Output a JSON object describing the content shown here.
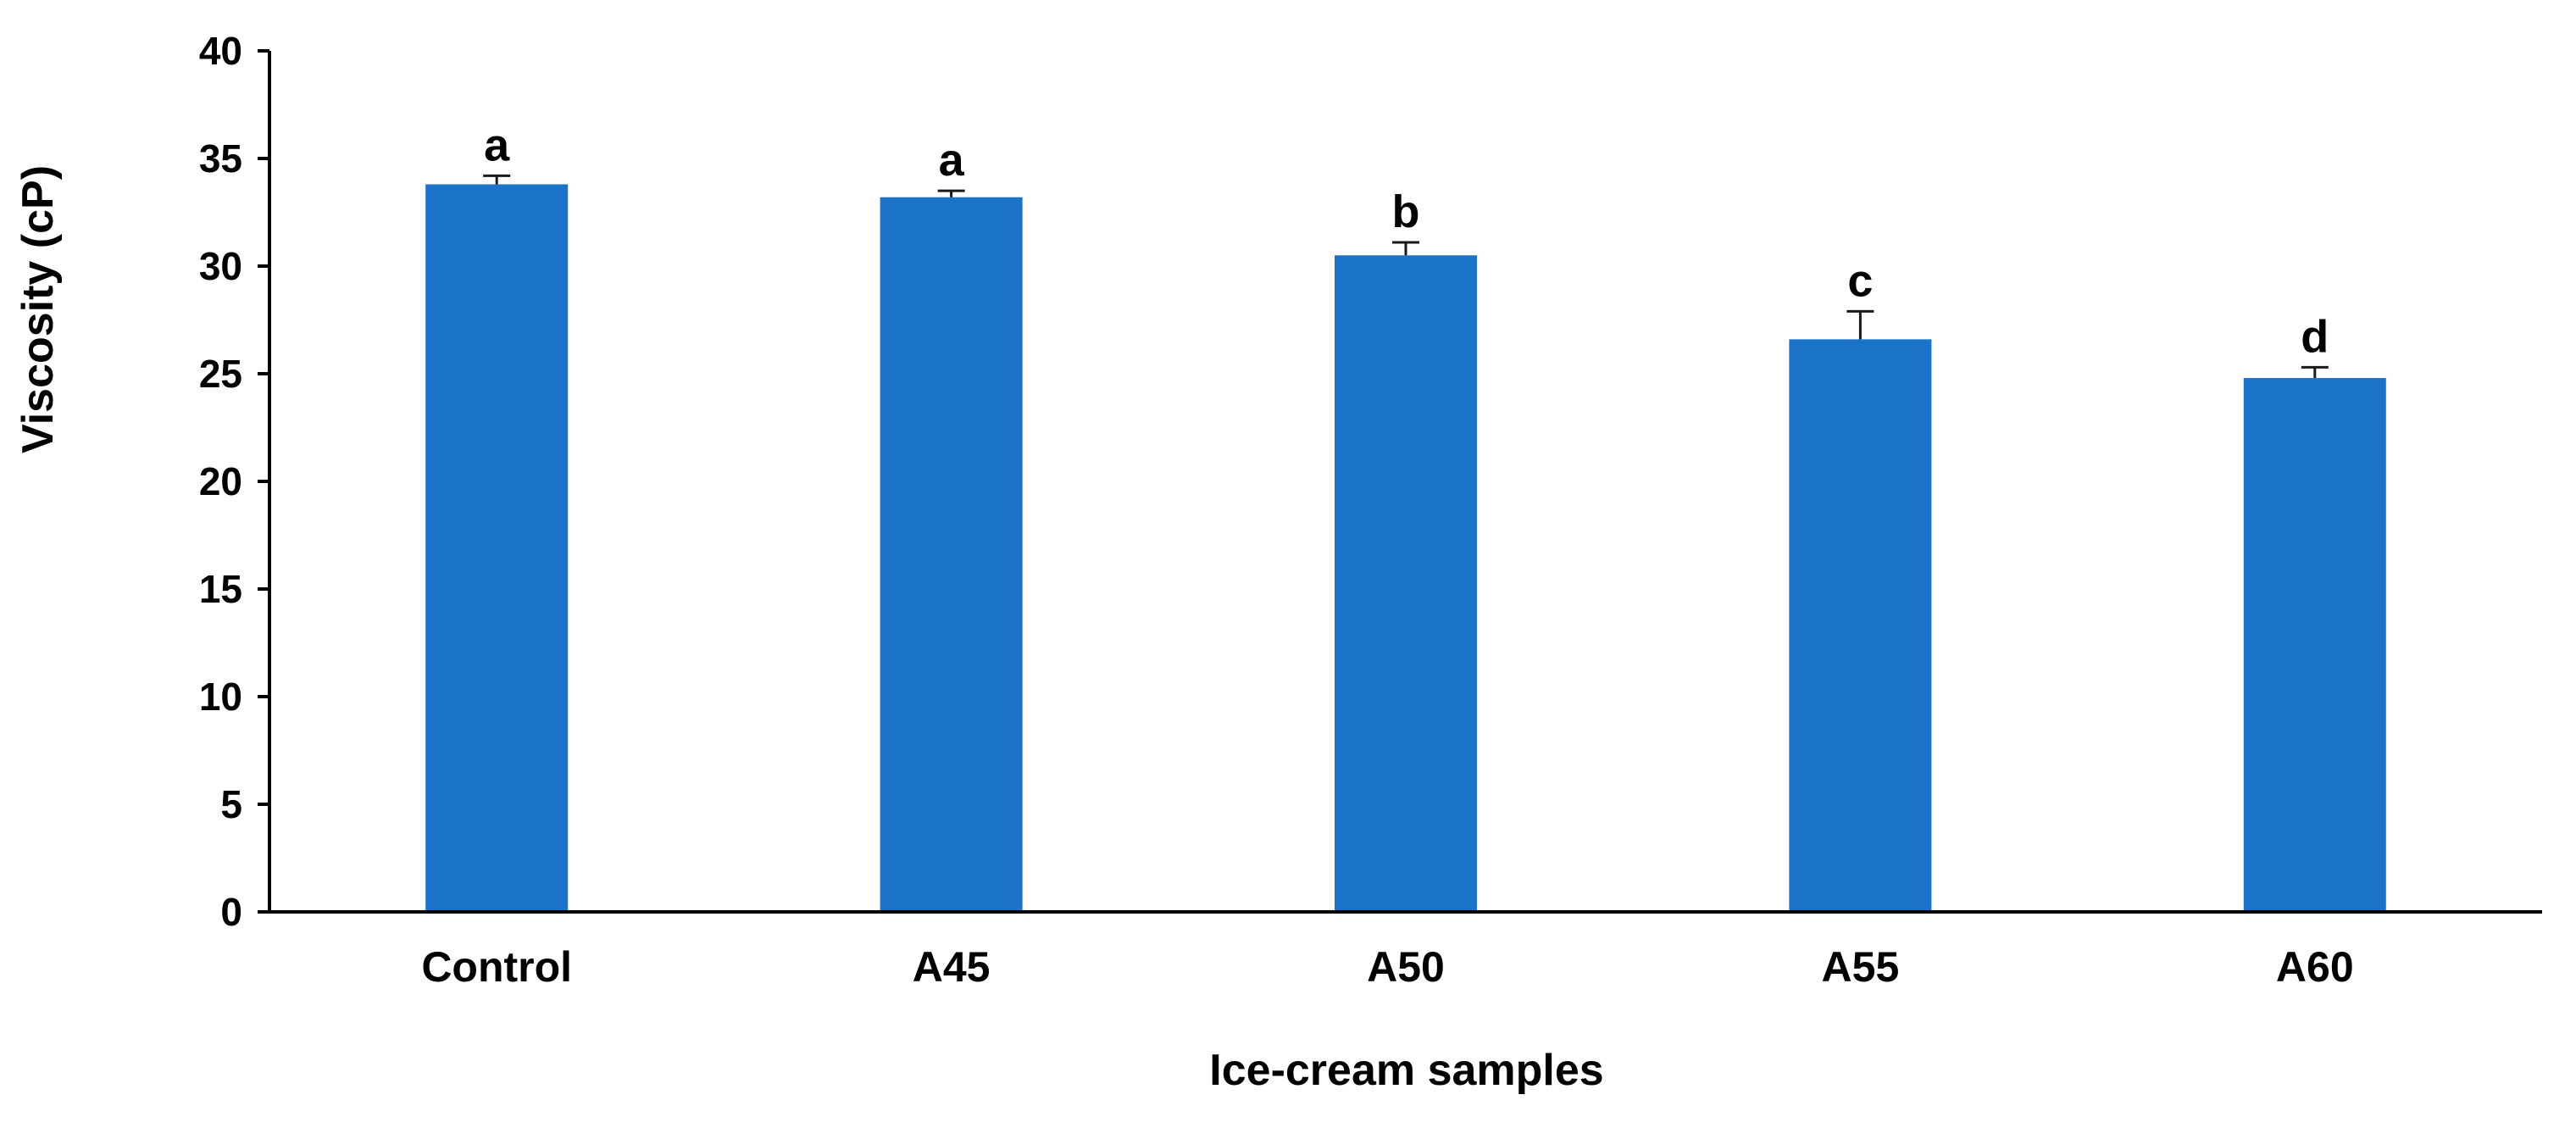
{
  "chart_data": {
    "type": "bar",
    "title": "",
    "xlabel": "Ice-cream samples",
    "ylabel": "Viscosity (cP)",
    "ylim": [
      0,
      40
    ],
    "yticks": [
      "0",
      "5",
      "10",
      "15",
      "20",
      "25",
      "30",
      "35",
      "40"
    ],
    "categories": [
      "Control",
      "A45",
      "A50",
      "A55",
      "A60"
    ],
    "series": [
      {
        "values": [
          33.8,
          33.2,
          30.5,
          26.6,
          24.8
        ],
        "errors": [
          0.4,
          0.3,
          0.6,
          1.3,
          0.5
        ],
        "significance_labels": [
          "a",
          "a",
          "b",
          "c",
          "d"
        ]
      }
    ],
    "grid": false,
    "legend": "none",
    "bar_color": "#1b72c9"
  }
}
